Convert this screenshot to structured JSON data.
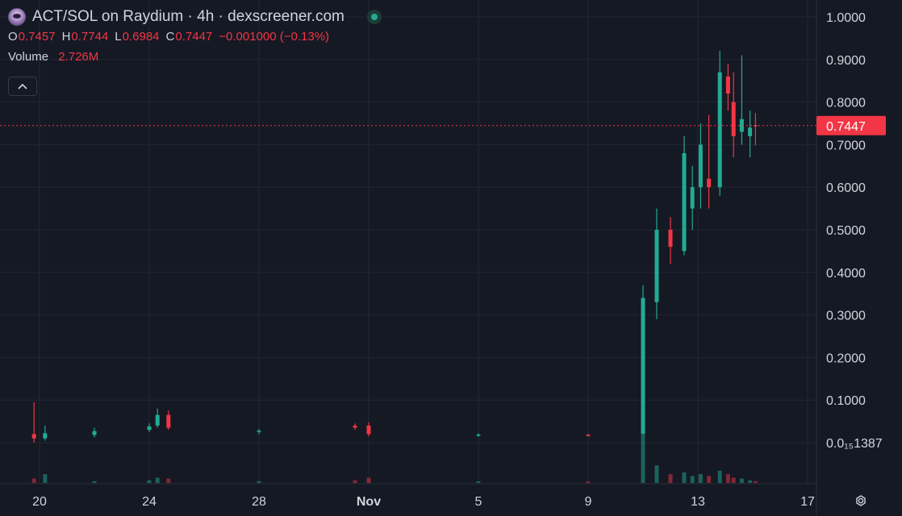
{
  "header": {
    "title": "ACT/SOL on Raydium · 4h · dexscreener.com",
    "ohlc": [
      {
        "label": "O",
        "value": "0.7457"
      },
      {
        "label": "H",
        "value": "0.7744"
      },
      {
        "label": "L",
        "value": "0.6984"
      },
      {
        "label": "C",
        "value": "0.7447"
      }
    ],
    "change": "−0.001000 (−0.13%)",
    "volume_label": "Volume",
    "volume_value": "2.726M"
  },
  "icons": {
    "logo": "act-token-logo-icon",
    "status": "live-status-dot-icon",
    "collapse": "chevron-up-icon",
    "settings": "gear-icon"
  },
  "colors": {
    "background": "#151924",
    "up": "#22ab94",
    "down": "#f23645",
    "grid": "#232734",
    "text": "#d1d4dc"
  },
  "chart_data": {
    "type": "candlestick",
    "xlabel": "",
    "ylabel": "",
    "y_ticks": [
      "1.0000",
      "0.9000",
      "0.8000",
      "0.7000",
      "0.6000",
      "0.5000",
      "0.4000",
      "0.3000",
      "0.2000",
      "0.1000",
      "0.0₁₅1387"
    ],
    "y_tick_values": [
      1.0,
      0.9,
      0.8,
      0.7,
      0.6,
      0.5,
      0.4,
      0.3,
      0.2,
      0.1,
      0.0
    ],
    "ylim": [
      0.0,
      1.0
    ],
    "x_ticks": [
      "20",
      "24",
      "28",
      "Nov",
      "5",
      "9",
      "13",
      "17"
    ],
    "x_tick_days": [
      20,
      24,
      28,
      32,
      36,
      40,
      44,
      48
    ],
    "last_price": 0.7447,
    "last_price_label": "0.7447",
    "series": [
      {
        "day": 19.8,
        "open": 0.02,
        "high": 0.095,
        "low": 0.0,
        "close": 0.01,
        "volume": 0.05
      },
      {
        "day": 20.2,
        "open": 0.01,
        "high": 0.04,
        "low": 0.005,
        "close": 0.022,
        "volume": 0.1
      },
      {
        "day": 22.0,
        "open": 0.018,
        "high": 0.035,
        "low": 0.012,
        "close": 0.027,
        "volume": 0.02
      },
      {
        "day": 24.0,
        "open": 0.03,
        "high": 0.045,
        "low": 0.025,
        "close": 0.038,
        "volume": 0.03
      },
      {
        "day": 24.3,
        "open": 0.04,
        "high": 0.08,
        "low": 0.035,
        "close": 0.065,
        "volume": 0.06
      },
      {
        "day": 24.7,
        "open": 0.065,
        "high": 0.075,
        "low": 0.03,
        "close": 0.035,
        "volume": 0.05
      },
      {
        "day": 28.0,
        "open": 0.025,
        "high": 0.032,
        "low": 0.02,
        "close": 0.028,
        "volume": 0.02
      },
      {
        "day": 31.5,
        "open": 0.04,
        "high": 0.045,
        "low": 0.03,
        "close": 0.035,
        "volume": 0.03
      },
      {
        "day": 32.0,
        "open": 0.04,
        "high": 0.048,
        "low": 0.015,
        "close": 0.02,
        "volume": 0.06
      },
      {
        "day": 36.0,
        "open": 0.018,
        "high": 0.022,
        "low": 0.014,
        "close": 0.019,
        "volume": 0.01
      },
      {
        "day": 40.0,
        "open": 0.018,
        "high": 0.021,
        "low": 0.015,
        "close": 0.017,
        "volume": 0.01
      },
      {
        "day": 42.0,
        "open": 0.02,
        "high": 0.37,
        "low": 0.02,
        "close": 0.34,
        "volume": 0.55
      },
      {
        "day": 42.5,
        "open": 0.33,
        "high": 0.55,
        "low": 0.29,
        "close": 0.5,
        "volume": 0.2
      },
      {
        "day": 43.0,
        "open": 0.5,
        "high": 0.53,
        "low": 0.42,
        "close": 0.46,
        "volume": 0.1
      },
      {
        "day": 43.5,
        "open": 0.45,
        "high": 0.72,
        "low": 0.44,
        "close": 0.68,
        "volume": 0.12
      },
      {
        "day": 43.8,
        "open": 0.55,
        "high": 0.65,
        "low": 0.5,
        "close": 0.6,
        "volume": 0.08
      },
      {
        "day": 44.1,
        "open": 0.6,
        "high": 0.75,
        "low": 0.55,
        "close": 0.7,
        "volume": 0.1
      },
      {
        "day": 44.4,
        "open": 0.62,
        "high": 0.77,
        "low": 0.55,
        "close": 0.6,
        "volume": 0.08
      },
      {
        "day": 44.8,
        "open": 0.6,
        "high": 0.92,
        "low": 0.58,
        "close": 0.87,
        "volume": 0.14
      },
      {
        "day": 45.1,
        "open": 0.86,
        "high": 0.89,
        "low": 0.78,
        "close": 0.82,
        "volume": 0.1
      },
      {
        "day": 45.3,
        "open": 0.8,
        "high": 0.87,
        "low": 0.67,
        "close": 0.72,
        "volume": 0.06
      },
      {
        "day": 45.6,
        "open": 0.73,
        "high": 0.91,
        "low": 0.7,
        "close": 0.76,
        "volume": 0.05
      },
      {
        "day": 45.9,
        "open": 0.72,
        "high": 0.78,
        "low": 0.67,
        "close": 0.74,
        "volume": 0.03
      },
      {
        "day": 46.1,
        "open": 0.7457,
        "high": 0.7744,
        "low": 0.6984,
        "close": 0.7447,
        "volume": 0.02
      }
    ]
  }
}
